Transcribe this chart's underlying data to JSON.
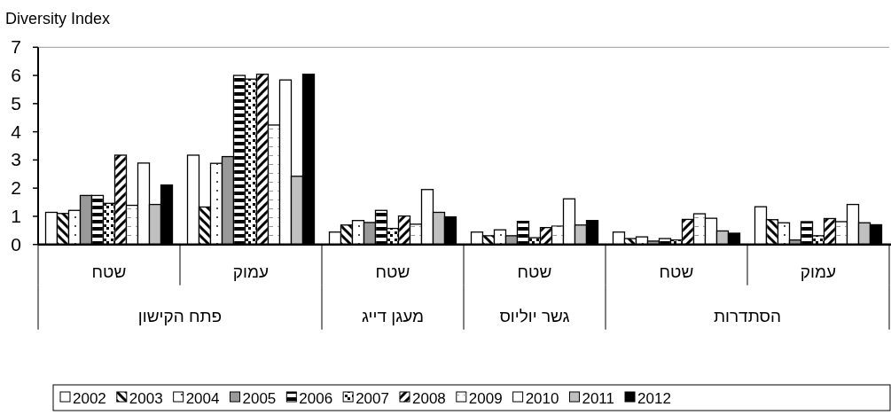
{
  "chart_data": {
    "type": "bar",
    "ylabel": "Diversity Index",
    "categories": [
      "שטח",
      "עמוק",
      "שטח",
      "שטח",
      "שטח",
      "עמוק"
    ],
    "annotations": [
      "פתח הקישון",
      "מעגן דייג",
      "גשר יוליוס",
      "הסתדרות"
    ],
    "ylim": [
      0,
      7
    ],
    "yticks": [
      0,
      1,
      2,
      3,
      4,
      5,
      6,
      7
    ],
    "grid": false,
    "legend": "bottom",
    "series": [
      {
        "name": "2002",
        "color": "#ffffff",
        "values": [
          1.14,
          3.17,
          0.44,
          0.44,
          0.44,
          1.34
        ]
      },
      {
        "name": "2003",
        "color": "#ffffff",
        "values": [
          1.1,
          1.33,
          0.69,
          0.31,
          0.21,
          0.88
        ]
      },
      {
        "name": "2004",
        "color": "#ffffff",
        "values": [
          1.21,
          2.88,
          0.85,
          0.52,
          0.27,
          0.77
        ]
      },
      {
        "name": "2005",
        "color": "#999999",
        "values": [
          1.74,
          3.12,
          0.78,
          0.31,
          0.12,
          0.16
        ]
      },
      {
        "name": "2006",
        "color": "#ffffff",
        "values": [
          1.74,
          6.0,
          1.21,
          0.82,
          0.21,
          0.81
        ]
      },
      {
        "name": "2007",
        "color": "#ffffff",
        "values": [
          1.46,
          5.87,
          0.57,
          0.24,
          0.16,
          0.31
        ]
      },
      {
        "name": "2008",
        "color": "#ffffff",
        "values": [
          3.17,
          6.04,
          1.01,
          0.6,
          0.89,
          0.92
        ]
      },
      {
        "name": "2009",
        "color": "#ffffff",
        "values": [
          1.39,
          4.24,
          0.72,
          0.65,
          1.09,
          0.81
        ]
      },
      {
        "name": "2010",
        "color": "#ffffff",
        "values": [
          2.89,
          5.84,
          1.95,
          1.62,
          0.93,
          1.42
        ]
      },
      {
        "name": "2011",
        "color": "#c0c0c0",
        "values": [
          1.42,
          2.42,
          1.14,
          0.69,
          0.48,
          0.77
        ]
      },
      {
        "name": "2012",
        "color": "#000000",
        "values": [
          2.11,
          6.04,
          0.98,
          0.85,
          0.4,
          0.7
        ]
      }
    ]
  }
}
